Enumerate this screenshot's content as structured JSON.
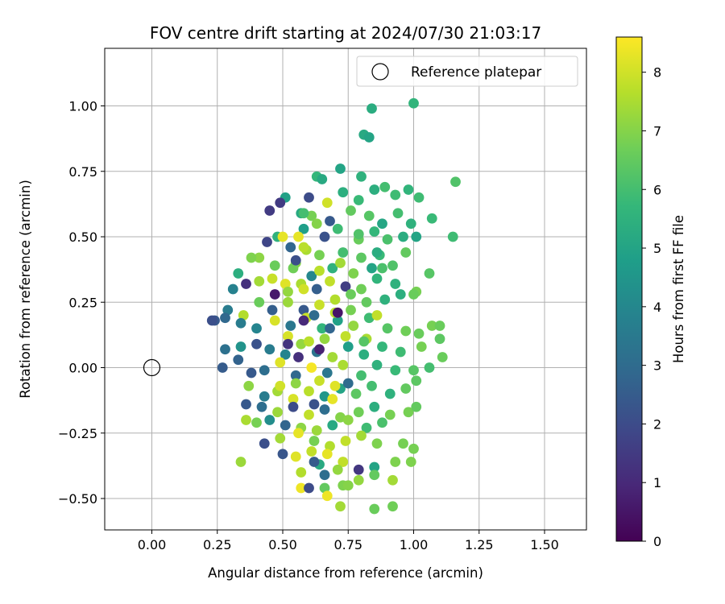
{
  "chart_data": {
    "type": "scatter",
    "title": "FOV centre drift starting at 2024/07/30 21:03:17",
    "xlabel": "Angular distance from reference (arcmin)",
    "ylabel": "Rotation from reference (arcmin)",
    "xlim": [
      -0.18,
      1.66
    ],
    "ylim": [
      -0.62,
      1.22
    ],
    "xticks": [
      0.0,
      0.25,
      0.5,
      0.75,
      1.0,
      1.25,
      1.5
    ],
    "xtick_labels": [
      "0.00",
      "0.25",
      "0.50",
      "0.75",
      "1.00",
      "1.25",
      "1.50"
    ],
    "yticks": [
      -0.5,
      -0.25,
      0.0,
      0.25,
      0.5,
      0.75,
      1.0
    ],
    "ytick_labels": [
      "−0.50",
      "−0.25",
      "0.00",
      "0.25",
      "0.50",
      "0.75",
      "1.00"
    ],
    "grid": true,
    "legend": {
      "placement": "top-right",
      "entries": [
        "Reference platepar"
      ]
    },
    "reference_point": {
      "x": 0.0,
      "y": 0.0
    },
    "colorbar": {
      "label": "Hours from first FF file",
      "range": [
        0,
        8.6
      ],
      "ticks": [
        0,
        1,
        2,
        3,
        4,
        5,
        6,
        7,
        8
      ],
      "tick_labels": [
        "0",
        "1",
        "2",
        "3",
        "4",
        "5",
        "6",
        "7",
        "8"
      ],
      "colormap": "viridis"
    },
    "colormap_stops": [
      "#440154",
      "#482878",
      "#3e4989",
      "#31688e",
      "#26828e",
      "#1f9e89",
      "#35b779",
      "#6ece58",
      "#b5de2b",
      "#fde725"
    ],
    "points": [
      [
        0.84,
        0.99,
        5.3
      ],
      [
        1.0,
        1.01,
        5.6
      ],
      [
        0.81,
        0.89,
        5.2
      ],
      [
        0.83,
        0.88,
        5.0
      ],
      [
        1.16,
        0.71,
        6.2
      ],
      [
        1.15,
        0.5,
        5.9
      ],
      [
        1.07,
        0.57,
        5.8
      ],
      [
        1.02,
        0.65,
        5.9
      ],
      [
        0.72,
        0.76,
        5.0
      ],
      [
        0.8,
        0.73,
        5.5
      ],
      [
        0.63,
        0.73,
        5.7
      ],
      [
        0.65,
        0.72,
        5.2
      ],
      [
        0.85,
        0.68,
        5.4
      ],
      [
        0.93,
        0.66,
        5.9
      ],
      [
        0.89,
        0.69,
        6.0
      ],
      [
        0.98,
        0.68,
        5.6
      ],
      [
        0.51,
        0.65,
        4.9
      ],
      [
        0.49,
        0.63,
        1.5
      ],
      [
        0.45,
        0.6,
        1.5
      ],
      [
        0.57,
        0.59,
        5.2
      ],
      [
        0.6,
        0.65,
        2.0
      ],
      [
        0.67,
        0.63,
        8.0
      ],
      [
        0.73,
        0.67,
        5.4
      ],
      [
        0.79,
        0.64,
        5.8
      ],
      [
        0.58,
        0.53,
        4.8
      ],
      [
        0.61,
        0.58,
        6.8
      ],
      [
        0.68,
        0.56,
        2.4
      ],
      [
        0.76,
        0.6,
        6.5
      ],
      [
        0.83,
        0.58,
        6.3
      ],
      [
        0.88,
        0.55,
        5.1
      ],
      [
        0.94,
        0.59,
        6.0
      ],
      [
        0.99,
        0.55,
        5.5
      ],
      [
        1.01,
        0.5,
        5.0
      ],
      [
        0.96,
        0.5,
        5.3
      ],
      [
        0.9,
        0.49,
        6.1
      ],
      [
        0.85,
        0.52,
        5.7
      ],
      [
        0.79,
        0.49,
        6.6
      ],
      [
        0.71,
        0.53,
        5.9
      ],
      [
        0.66,
        0.5,
        2.2
      ],
      [
        0.56,
        0.5,
        8.3
      ],
      [
        0.48,
        0.5,
        5.5
      ],
      [
        0.5,
        0.5,
        8.3
      ],
      [
        0.44,
        0.48,
        1.8
      ],
      [
        0.53,
        0.46,
        2.8
      ],
      [
        0.59,
        0.45,
        7.5
      ],
      [
        0.64,
        0.43,
        6.8
      ],
      [
        0.73,
        0.44,
        6.0
      ],
      [
        0.8,
        0.42,
        6.4
      ],
      [
        0.87,
        0.43,
        5.8
      ],
      [
        0.97,
        0.44,
        6.5
      ],
      [
        0.92,
        0.39,
        6.2
      ],
      [
        0.84,
        0.38,
        5.0
      ],
      [
        0.77,
        0.36,
        6.9
      ],
      [
        0.69,
        0.38,
        5.5
      ],
      [
        0.61,
        0.35,
        4.0
      ],
      [
        0.55,
        0.4,
        7.0
      ],
      [
        0.47,
        0.39,
        6.6
      ],
      [
        0.41,
        0.42,
        7.1
      ],
      [
        0.38,
        0.42,
        6.9
      ],
      [
        0.33,
        0.36,
        5.4
      ],
      [
        0.31,
        0.3,
        3.8
      ],
      [
        0.36,
        0.32,
        1.2
      ],
      [
        0.41,
        0.33,
        7.4
      ],
      [
        0.46,
        0.34,
        7.9
      ],
      [
        0.51,
        0.32,
        8.2
      ],
      [
        0.57,
        0.32,
        7.5
      ],
      [
        0.63,
        0.3,
        2.6
      ],
      [
        0.68,
        0.33,
        7.8
      ],
      [
        0.74,
        0.31,
        1.6
      ],
      [
        0.8,
        0.3,
        6.7
      ],
      [
        0.86,
        0.34,
        5.6
      ],
      [
        0.93,
        0.32,
        5.5
      ],
      [
        1.01,
        0.29,
        6.8
      ],
      [
        1.0,
        0.28,
        6.6
      ],
      [
        1.06,
        0.36,
        6.3
      ],
      [
        0.95,
        0.28,
        5.4
      ],
      [
        0.89,
        0.26,
        5.5
      ],
      [
        0.82,
        0.25,
        6.5
      ],
      [
        0.76,
        0.22,
        6.8
      ],
      [
        0.7,
        0.26,
        7.6
      ],
      [
        0.64,
        0.24,
        7.9
      ],
      [
        0.58,
        0.22,
        2.4
      ],
      [
        0.52,
        0.25,
        7.3
      ],
      [
        0.46,
        0.22,
        2.6
      ],
      [
        0.41,
        0.25,
        6.6
      ],
      [
        0.35,
        0.2,
        7.6
      ],
      [
        0.29,
        0.22,
        3.6
      ],
      [
        0.24,
        0.18,
        2.4
      ],
      [
        0.23,
        0.18,
        2.1
      ],
      [
        0.28,
        0.19,
        2.9
      ],
      [
        0.34,
        0.17,
        3.6
      ],
      [
        0.4,
        0.15,
        3.9
      ],
      [
        0.47,
        0.18,
        8.1
      ],
      [
        0.53,
        0.16,
        3.4
      ],
      [
        0.59,
        0.19,
        7.9
      ],
      [
        0.65,
        0.15,
        5.6
      ],
      [
        0.71,
        0.18,
        4.9
      ],
      [
        0.77,
        0.16,
        7.2
      ],
      [
        0.83,
        0.19,
        5.9
      ],
      [
        0.9,
        0.15,
        6.3
      ],
      [
        0.97,
        0.14,
        6.7
      ],
      [
        1.02,
        0.13,
        6.6
      ],
      [
        1.07,
        0.16,
        6.8
      ],
      [
        1.1,
        0.16,
        6.6
      ],
      [
        1.1,
        0.11,
        6.4
      ],
      [
        1.03,
        0.08,
        6.8
      ],
      [
        0.95,
        0.06,
        5.9
      ],
      [
        0.88,
        0.08,
        5.7
      ],
      [
        0.81,
        0.05,
        5.4
      ],
      [
        0.75,
        0.08,
        4.8
      ],
      [
        0.69,
        0.04,
        7.4
      ],
      [
        0.63,
        0.06,
        3.3
      ],
      [
        0.57,
        0.09,
        7.2
      ],
      [
        0.51,
        0.05,
        3.9
      ],
      [
        0.45,
        0.07,
        3.6
      ],
      [
        0.4,
        0.09,
        2.2
      ],
      [
        0.34,
        0.08,
        4.4
      ],
      [
        0.28,
        0.07,
        3.2
      ],
      [
        0.27,
        0.0,
        2.5
      ],
      [
        0.33,
        0.03,
        2.7
      ],
      [
        0.38,
        -0.02,
        2.4
      ],
      [
        0.43,
        -0.01,
        3.1
      ],
      [
        0.49,
        0.02,
        8.2
      ],
      [
        0.55,
        -0.03,
        2.9
      ],
      [
        0.61,
        0.0,
        8.5
      ],
      [
        0.67,
        -0.02,
        3.4
      ],
      [
        0.73,
        0.01,
        7.5
      ],
      [
        0.8,
        -0.03,
        6.0
      ],
      [
        0.86,
        0.01,
        5.5
      ],
      [
        0.93,
        -0.01,
        5.8
      ],
      [
        1.0,
        -0.01,
        6.3
      ],
      [
        1.06,
        0.0,
        6.0
      ],
      [
        1.11,
        0.04,
        6.6
      ],
      [
        1.01,
        -0.05,
        6.4
      ],
      [
        0.97,
        -0.08,
        6.5
      ],
      [
        0.91,
        -0.1,
        5.5
      ],
      [
        0.84,
        -0.07,
        6.0
      ],
      [
        0.78,
        -0.1,
        6.4
      ],
      [
        0.72,
        -0.08,
        5.0
      ],
      [
        0.66,
        -0.11,
        4.5
      ],
      [
        0.6,
        -0.09,
        7.7
      ],
      [
        0.54,
        -0.12,
        8.1
      ],
      [
        0.48,
        -0.09,
        7.4
      ],
      [
        0.43,
        -0.11,
        3.6
      ],
      [
        0.37,
        -0.07,
        7.1
      ],
      [
        0.42,
        -0.15,
        3.1
      ],
      [
        0.48,
        -0.17,
        7.3
      ],
      [
        0.54,
        -0.15,
        2.0
      ],
      [
        0.6,
        -0.18,
        7.8
      ],
      [
        0.66,
        -0.16,
        3.1
      ],
      [
        0.72,
        -0.19,
        7.0
      ],
      [
        0.79,
        -0.17,
        6.7
      ],
      [
        0.85,
        -0.15,
        5.4
      ],
      [
        0.91,
        -0.18,
        6.8
      ],
      [
        0.98,
        -0.17,
        6.8
      ],
      [
        1.01,
        -0.15,
        6.5
      ],
      [
        0.88,
        -0.21,
        6.1
      ],
      [
        0.82,
        -0.23,
        5.9
      ],
      [
        0.75,
        -0.2,
        7.1
      ],
      [
        0.69,
        -0.22,
        5.2
      ],
      [
        0.63,
        -0.24,
        7.3
      ],
      [
        0.57,
        -0.23,
        7.1
      ],
      [
        0.51,
        -0.22,
        2.8
      ],
      [
        0.45,
        -0.2,
        4.2
      ],
      [
        0.4,
        -0.21,
        6.8
      ],
      [
        0.36,
        -0.2,
        7.5
      ],
      [
        0.36,
        -0.14,
        2.4
      ],
      [
        0.43,
        -0.29,
        2.1
      ],
      [
        0.49,
        -0.27,
        7.4
      ],
      [
        0.56,
        -0.25,
        8.3
      ],
      [
        0.62,
        -0.28,
        6.8
      ],
      [
        0.68,
        -0.3,
        7.6
      ],
      [
        0.74,
        -0.28,
        7.8
      ],
      [
        0.8,
        -0.26,
        7.4
      ],
      [
        0.86,
        -0.29,
        6.9
      ],
      [
        0.96,
        -0.29,
        6.8
      ],
      [
        1.0,
        -0.31,
        6.8
      ],
      [
        0.99,
        -0.36,
        6.9
      ],
      [
        0.93,
        -0.36,
        6.9
      ],
      [
        0.85,
        -0.38,
        5.0
      ],
      [
        0.79,
        -0.39,
        1.4
      ],
      [
        0.73,
        -0.36,
        7.8
      ],
      [
        0.67,
        -0.33,
        8.3
      ],
      [
        0.61,
        -0.32,
        7.8
      ],
      [
        0.55,
        -0.34,
        8.2
      ],
      [
        0.5,
        -0.33,
        2.3
      ],
      [
        0.34,
        -0.36,
        7.3
      ],
      [
        0.57,
        -0.46,
        8.4
      ],
      [
        0.6,
        -0.46,
        2.0
      ],
      [
        0.64,
        -0.37,
        5.2
      ],
      [
        0.66,
        -0.46,
        6.5
      ],
      [
        0.67,
        -0.49,
        8.4
      ],
      [
        0.73,
        -0.45,
        6.9
      ],
      [
        0.75,
        -0.45,
        7.0
      ],
      [
        0.79,
        -0.43,
        7.2
      ],
      [
        0.85,
        -0.54,
        6.6
      ],
      [
        0.92,
        -0.53,
        6.7
      ],
      [
        0.92,
        -0.43,
        7.4
      ],
      [
        0.85,
        -0.41,
        6.5
      ],
      [
        0.72,
        -0.53,
        7.4
      ],
      [
        0.66,
        -0.41,
        3.1
      ],
      [
        0.71,
        -0.39,
        7.2
      ],
      [
        0.62,
        -0.36,
        2.5
      ],
      [
        0.57,
        -0.4,
        7.6
      ],
      [
        0.54,
        0.38,
        6.7
      ],
      [
        0.58,
        0.3,
        8.0
      ],
      [
        0.64,
        0.37,
        7.7
      ],
      [
        0.7,
        0.21,
        7.7
      ],
      [
        0.76,
        0.28,
        6.6
      ],
      [
        0.52,
        0.12,
        8.1
      ],
      [
        0.6,
        0.1,
        7.7
      ],
      [
        0.64,
        -0.05,
        7.9
      ],
      [
        0.7,
        -0.07,
        8.2
      ],
      [
        0.55,
        -0.06,
        7.1
      ],
      [
        0.49,
        -0.07,
        8.0
      ],
      [
        0.66,
        0.11,
        7.2
      ],
      [
        0.74,
        0.12,
        7.8
      ],
      [
        0.82,
        0.11,
        7.5
      ],
      [
        0.86,
        0.2,
        7.8
      ],
      [
        0.72,
        0.4,
        7.4
      ],
      [
        0.58,
        0.46,
        7.7
      ],
      [
        0.52,
        0.29,
        7.2
      ],
      [
        0.62,
        0.2,
        3.0
      ],
      [
        0.68,
        0.15,
        2.8
      ],
      [
        0.56,
        0.04,
        1.2
      ],
      [
        0.62,
        -0.14,
        2.2
      ],
      [
        0.69,
        -0.12,
        8.3
      ],
      [
        0.75,
        -0.06,
        3.0
      ],
      [
        0.81,
        0.1,
        6.3
      ],
      [
        0.88,
        0.38,
        6.1
      ],
      [
        0.79,
        0.51,
        6.2
      ],
      [
        0.86,
        0.44,
        5.3
      ],
      [
        0.63,
        0.55,
        7.0
      ],
      [
        0.58,
        0.59,
        6.0
      ],
      [
        0.55,
        0.41,
        2.1
      ],
      [
        0.47,
        0.28,
        0.6
      ],
      [
        0.71,
        0.21,
        0.5
      ],
      [
        0.64,
        0.07,
        0.8
      ],
      [
        0.58,
        0.18,
        1.0
      ],
      [
        0.52,
        0.09,
        1.3
      ]
    ]
  }
}
